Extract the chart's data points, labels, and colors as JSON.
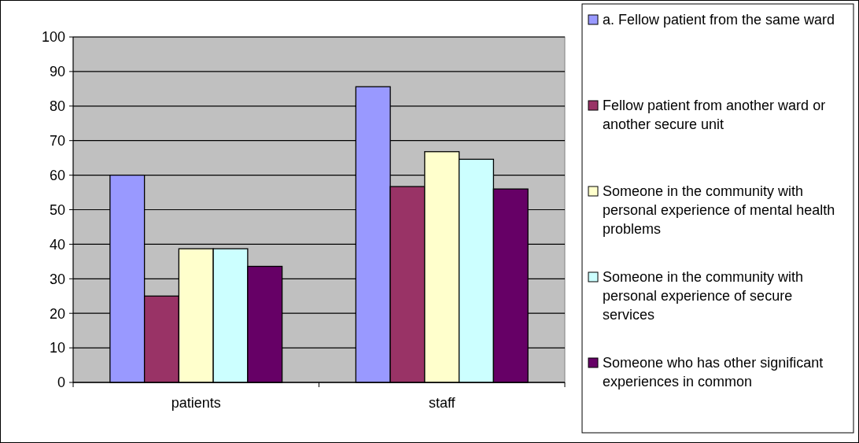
{
  "chart_data": {
    "type": "bar",
    "categories": [
      "patients",
      "staff"
    ],
    "series": [
      {
        "name": "a. Fellow patient from the same ward",
        "color": "#9999ff",
        "values": [
          60,
          85.6
        ]
      },
      {
        "name": "Fellow patient from another ward or another secure unit",
        "color": "#993366",
        "values": [
          25,
          56.7
        ]
      },
      {
        "name": "Someone in the community with personal experience of mental health problems",
        "color": "#ffffcc",
        "values": [
          38.7,
          66.8
        ]
      },
      {
        "name": "Someone in the community with personal experience of secure services",
        "color": "#ccffff",
        "values": [
          38.7,
          64.6
        ]
      },
      {
        "name": "Someone who has other significant experiences in common",
        "color": "#660066",
        "values": [
          33.6,
          56
        ]
      }
    ],
    "ylim": [
      0,
      100
    ],
    "yticks": [
      0,
      10,
      20,
      30,
      40,
      50,
      60,
      70,
      80,
      90,
      100
    ],
    "grid": "y",
    "legend": "right"
  }
}
